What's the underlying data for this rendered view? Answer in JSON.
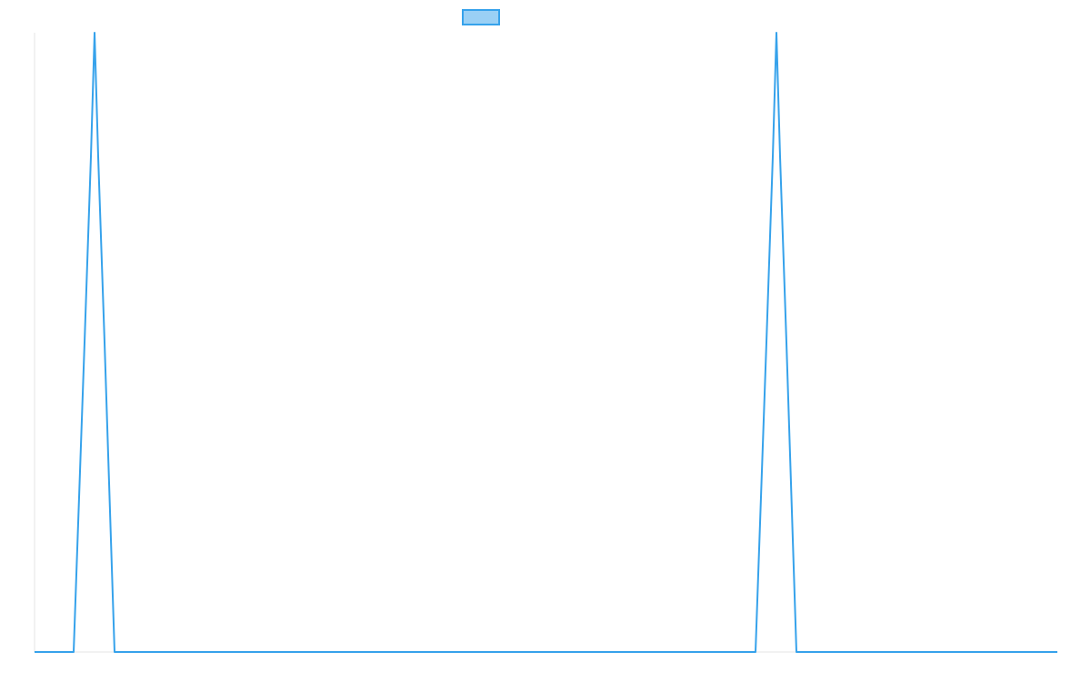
{
  "chart_data": {
    "type": "line",
    "title": "",
    "xlabel": "",
    "ylabel": "",
    "legend_position": "top-center",
    "grid": false,
    "colors": {
      "line": "#36a2eb",
      "legend_fill": "#9ad0f5",
      "axis": "#e6e6e6"
    },
    "series": [
      {
        "x": [
          0,
          43,
          55,
          62,
          66,
          70,
          77,
          88,
          793,
          805,
          812,
          816,
          820,
          827,
          838,
          1125
        ],
        "values": [
          0,
          0,
          0.5,
          0.8,
          1.0,
          0.8,
          0.5,
          0,
          0,
          0.5,
          0.8,
          1.0,
          0.8,
          0.5,
          0,
          0
        ]
      }
    ],
    "xlim": [
      0,
      1125
    ],
    "ylim": [
      0,
      1
    ]
  }
}
